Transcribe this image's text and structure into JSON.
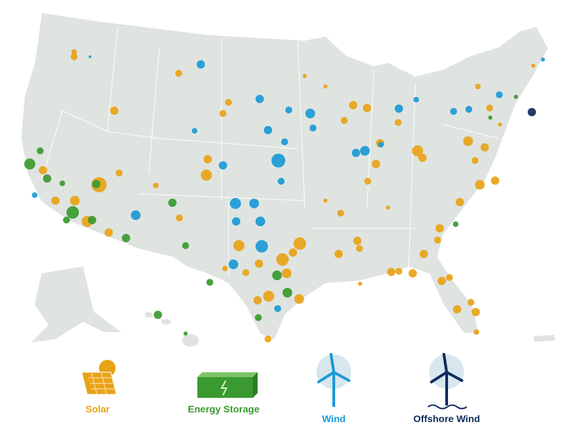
{
  "legend": {
    "items": [
      "Solar",
      "Energy Storage",
      "Wind",
      "Offshore Wind"
    ]
  }
}
